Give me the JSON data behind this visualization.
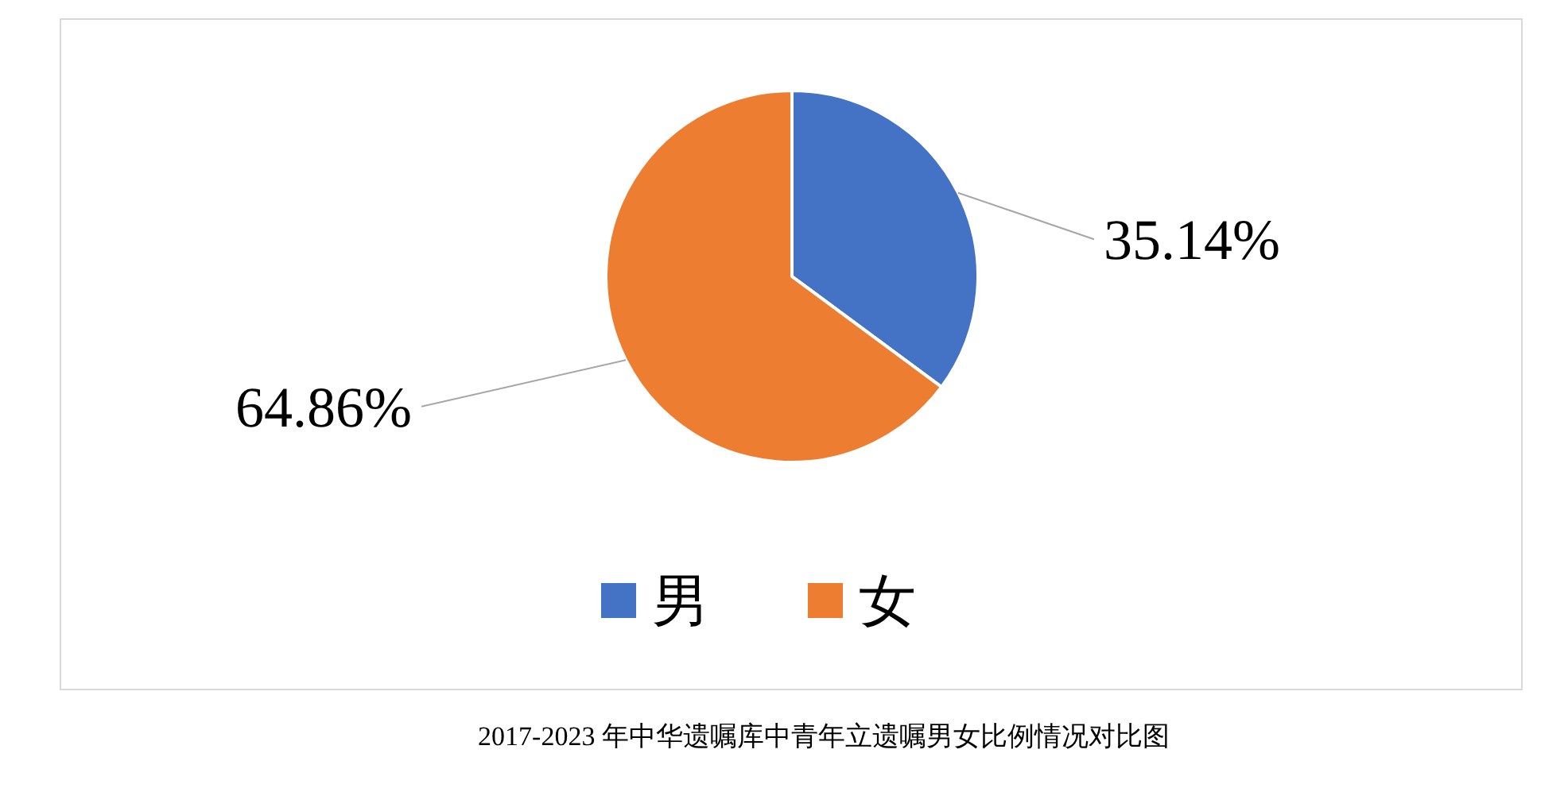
{
  "chart_data": {
    "type": "pie",
    "title": "2017-2023 年中华遗嘱库中青年立遗嘱男女比例情况对比图",
    "categories": [
      "男",
      "女"
    ],
    "values": [
      35.14,
      64.86
    ],
    "value_labels": [
      "35.14%",
      "64.86%"
    ],
    "colors": [
      "#4472c4",
      "#ed7d31"
    ],
    "legend": "bottom"
  }
}
